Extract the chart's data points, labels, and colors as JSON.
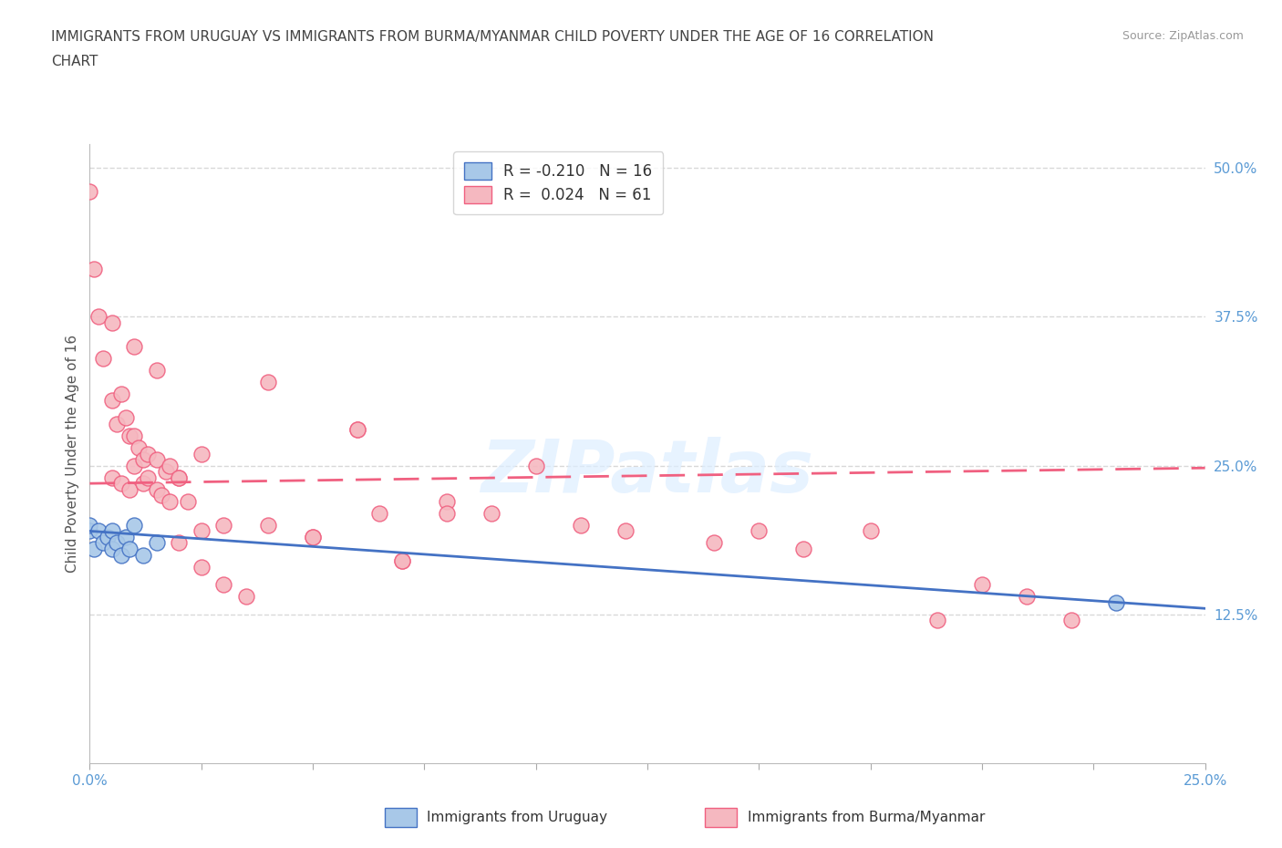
{
  "title_line1": "IMMIGRANTS FROM URUGUAY VS IMMIGRANTS FROM BURMA/MYANMAR CHILD POVERTY UNDER THE AGE OF 16 CORRELATION",
  "title_line2": "CHART",
  "source": "Source: ZipAtlas.com",
  "ylabel": "Child Poverty Under the Age of 16",
  "xlim": [
    0.0,
    0.25
  ],
  "ylim": [
    0.0,
    0.52
  ],
  "x_ticks": [
    0.0,
    0.025,
    0.05,
    0.075,
    0.1,
    0.125,
    0.15,
    0.175,
    0.2,
    0.225,
    0.25
  ],
  "x_tick_labels_show": {
    "0.0": "0.0%",
    "0.25": "25.0%"
  },
  "y_tick_vals_right": [
    0.125,
    0.25,
    0.375,
    0.5
  ],
  "y_tick_labels_right": [
    "12.5%",
    "25.0%",
    "37.5%",
    "50.0%"
  ],
  "background_color": "#ffffff",
  "watermark": "ZIPatlas",
  "legend_R1": "-0.210",
  "legend_N1": "16",
  "legend_R2": "0.024",
  "legend_N2": "61",
  "color_uruguay": "#a8c8e8",
  "color_burma": "#f5b8c0",
  "trendline_color_uruguay": "#4472c4",
  "trendline_color_burma": "#f06080",
  "grid_color": "#d8d8d8",
  "uruguay_x": [
    0.0,
    0.0,
    0.001,
    0.002,
    0.003,
    0.004,
    0.005,
    0.005,
    0.006,
    0.007,
    0.008,
    0.009,
    0.01,
    0.012,
    0.015,
    0.23
  ],
  "uruguay_y": [
    0.195,
    0.2,
    0.18,
    0.195,
    0.185,
    0.19,
    0.18,
    0.195,
    0.185,
    0.175,
    0.19,
    0.18,
    0.2,
    0.175,
    0.185,
    0.135
  ],
  "burma_x": [
    0.005,
    0.007,
    0.009,
    0.01,
    0.012,
    0.013,
    0.015,
    0.016,
    0.018,
    0.02,
    0.022,
    0.025,
    0.0,
    0.001,
    0.002,
    0.003,
    0.005,
    0.006,
    0.007,
    0.008,
    0.009,
    0.01,
    0.011,
    0.012,
    0.013,
    0.015,
    0.017,
    0.018,
    0.02,
    0.025,
    0.03,
    0.04,
    0.05,
    0.06,
    0.065,
    0.07,
    0.08,
    0.09,
    0.1,
    0.11,
    0.12,
    0.14,
    0.15,
    0.16,
    0.175,
    0.19,
    0.2,
    0.21,
    0.22,
    0.005,
    0.01,
    0.015,
    0.02,
    0.025,
    0.03,
    0.035,
    0.04,
    0.05,
    0.06,
    0.07,
    0.08
  ],
  "burma_y": [
    0.24,
    0.235,
    0.23,
    0.25,
    0.235,
    0.24,
    0.23,
    0.225,
    0.22,
    0.24,
    0.22,
    0.195,
    0.48,
    0.415,
    0.375,
    0.34,
    0.305,
    0.285,
    0.31,
    0.29,
    0.275,
    0.275,
    0.265,
    0.255,
    0.26,
    0.255,
    0.245,
    0.25,
    0.24,
    0.26,
    0.2,
    0.2,
    0.19,
    0.28,
    0.21,
    0.17,
    0.22,
    0.21,
    0.25,
    0.2,
    0.195,
    0.185,
    0.195,
    0.18,
    0.195,
    0.12,
    0.15,
    0.14,
    0.12,
    0.37,
    0.35,
    0.33,
    0.185,
    0.165,
    0.15,
    0.14,
    0.32,
    0.19,
    0.28,
    0.17,
    0.21
  ]
}
